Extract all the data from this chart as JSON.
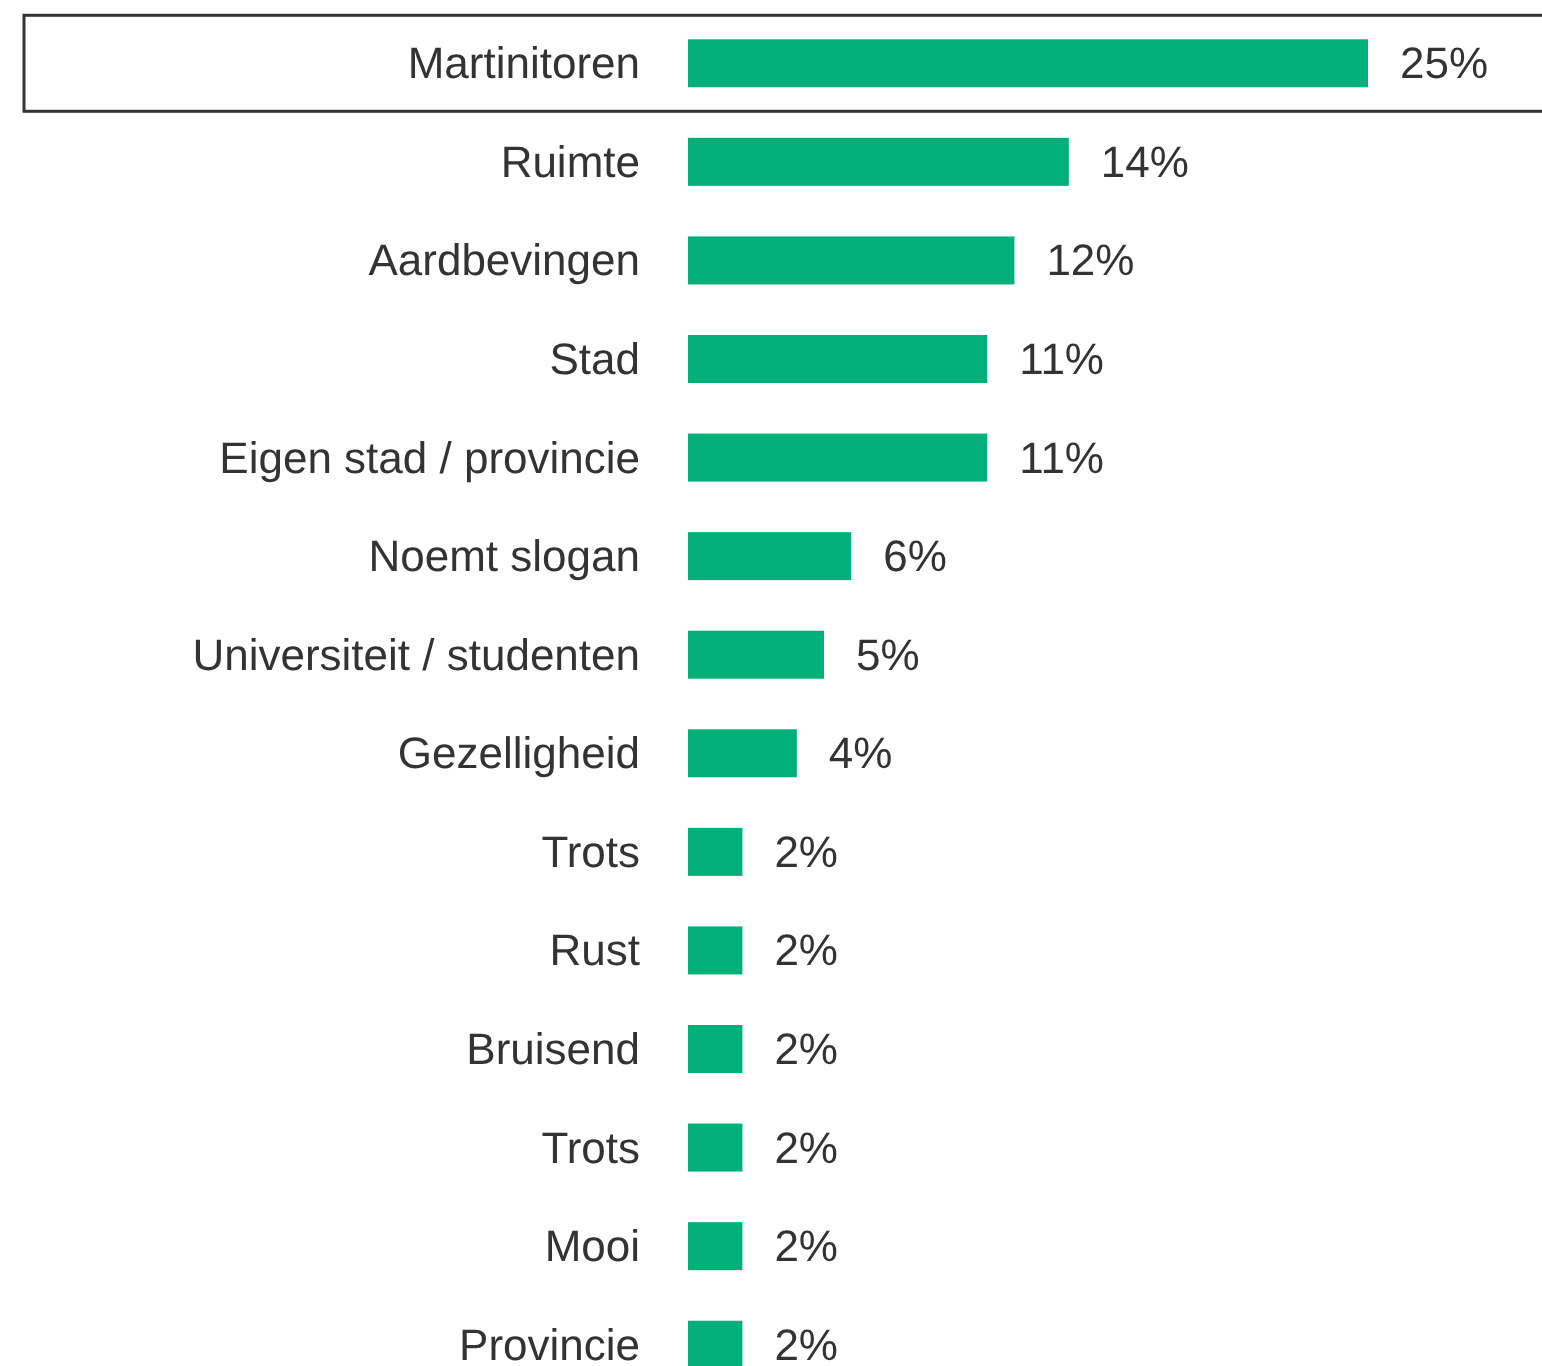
{
  "chart_data": {
    "type": "bar",
    "orientation": "horizontal",
    "categories": [
      "Martinitoren",
      "Ruimte",
      "Aardbevingen",
      "Stad",
      "Eigen stad / provincie",
      "Noemt slogan",
      "Universiteit / studenten",
      "Gezelligheid",
      "Trots",
      "Rust",
      "Bruisend",
      "Trots",
      "Mooi",
      "Provincie"
    ],
    "values": [
      25,
      14,
      12,
      11,
      11,
      6,
      5,
      4,
      2,
      2,
      2,
      2,
      2,
      2
    ],
    "value_labels": [
      "25%",
      "14%",
      "12%",
      "11%",
      "11%",
      "6%",
      "5%",
      "4%",
      "2%",
      "2%",
      "2%",
      "2%",
      "2%",
      "2%"
    ],
    "color": "#00af7a"
  }
}
